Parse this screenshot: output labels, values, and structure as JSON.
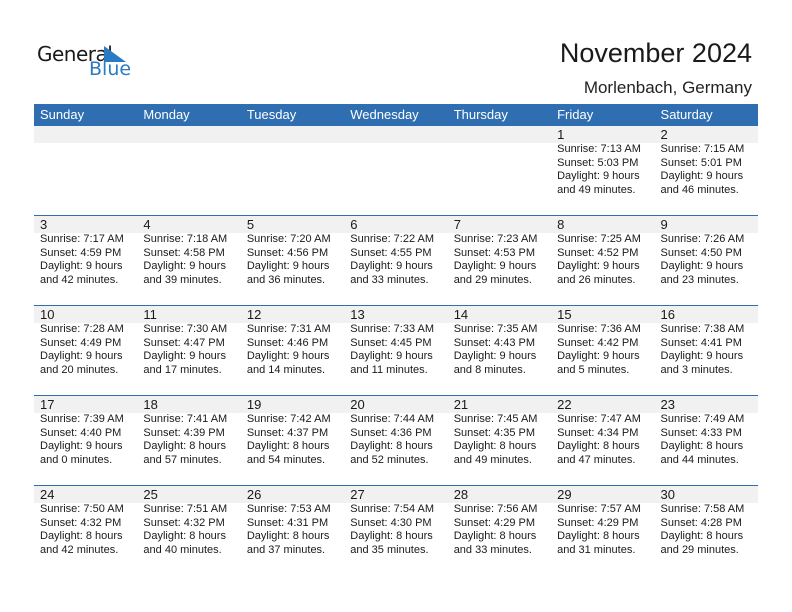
{
  "logo": {
    "line1": "General",
    "line2": "Blue"
  },
  "title": "November 2024",
  "location": "Morlenbach, Germany",
  "colors": {
    "header": "#2f6eb1",
    "logo_blue": "#2a7bc4",
    "band": "#f1f1f1"
  },
  "weekdays": [
    "Sunday",
    "Monday",
    "Tuesday",
    "Wednesday",
    "Thursday",
    "Friday",
    "Saturday"
  ],
  "weeks": [
    [
      null,
      null,
      null,
      null,
      null,
      {
        "day": "1",
        "sunrise": "Sunrise: 7:13 AM",
        "sunset": "Sunset: 5:03 PM",
        "daylight1": "Daylight: 9 hours",
        "daylight2": "and 49 minutes."
      },
      {
        "day": "2",
        "sunrise": "Sunrise: 7:15 AM",
        "sunset": "Sunset: 5:01 PM",
        "daylight1": "Daylight: 9 hours",
        "daylight2": "and 46 minutes."
      }
    ],
    [
      {
        "day": "3",
        "sunrise": "Sunrise: 7:17 AM",
        "sunset": "Sunset: 4:59 PM",
        "daylight1": "Daylight: 9 hours",
        "daylight2": "and 42 minutes."
      },
      {
        "day": "4",
        "sunrise": "Sunrise: 7:18 AM",
        "sunset": "Sunset: 4:58 PM",
        "daylight1": "Daylight: 9 hours",
        "daylight2": "and 39 minutes."
      },
      {
        "day": "5",
        "sunrise": "Sunrise: 7:20 AM",
        "sunset": "Sunset: 4:56 PM",
        "daylight1": "Daylight: 9 hours",
        "daylight2": "and 36 minutes."
      },
      {
        "day": "6",
        "sunrise": "Sunrise: 7:22 AM",
        "sunset": "Sunset: 4:55 PM",
        "daylight1": "Daylight: 9 hours",
        "daylight2": "and 33 minutes."
      },
      {
        "day": "7",
        "sunrise": "Sunrise: 7:23 AM",
        "sunset": "Sunset: 4:53 PM",
        "daylight1": "Daylight: 9 hours",
        "daylight2": "and 29 minutes."
      },
      {
        "day": "8",
        "sunrise": "Sunrise: 7:25 AM",
        "sunset": "Sunset: 4:52 PM",
        "daylight1": "Daylight: 9 hours",
        "daylight2": "and 26 minutes."
      },
      {
        "day": "9",
        "sunrise": "Sunrise: 7:26 AM",
        "sunset": "Sunset: 4:50 PM",
        "daylight1": "Daylight: 9 hours",
        "daylight2": "and 23 minutes."
      }
    ],
    [
      {
        "day": "10",
        "sunrise": "Sunrise: 7:28 AM",
        "sunset": "Sunset: 4:49 PM",
        "daylight1": "Daylight: 9 hours",
        "daylight2": "and 20 minutes."
      },
      {
        "day": "11",
        "sunrise": "Sunrise: 7:30 AM",
        "sunset": "Sunset: 4:47 PM",
        "daylight1": "Daylight: 9 hours",
        "daylight2": "and 17 minutes."
      },
      {
        "day": "12",
        "sunrise": "Sunrise: 7:31 AM",
        "sunset": "Sunset: 4:46 PM",
        "daylight1": "Daylight: 9 hours",
        "daylight2": "and 14 minutes."
      },
      {
        "day": "13",
        "sunrise": "Sunrise: 7:33 AM",
        "sunset": "Sunset: 4:45 PM",
        "daylight1": "Daylight: 9 hours",
        "daylight2": "and 11 minutes."
      },
      {
        "day": "14",
        "sunrise": "Sunrise: 7:35 AM",
        "sunset": "Sunset: 4:43 PM",
        "daylight1": "Daylight: 9 hours",
        "daylight2": "and 8 minutes."
      },
      {
        "day": "15",
        "sunrise": "Sunrise: 7:36 AM",
        "sunset": "Sunset: 4:42 PM",
        "daylight1": "Daylight: 9 hours",
        "daylight2": "and 5 minutes."
      },
      {
        "day": "16",
        "sunrise": "Sunrise: 7:38 AM",
        "sunset": "Sunset: 4:41 PM",
        "daylight1": "Daylight: 9 hours",
        "daylight2": "and 3 minutes."
      }
    ],
    [
      {
        "day": "17",
        "sunrise": "Sunrise: 7:39 AM",
        "sunset": "Sunset: 4:40 PM",
        "daylight1": "Daylight: 9 hours",
        "daylight2": "and 0 minutes."
      },
      {
        "day": "18",
        "sunrise": "Sunrise: 7:41 AM",
        "sunset": "Sunset: 4:39 PM",
        "daylight1": "Daylight: 8 hours",
        "daylight2": "and 57 minutes."
      },
      {
        "day": "19",
        "sunrise": "Sunrise: 7:42 AM",
        "sunset": "Sunset: 4:37 PM",
        "daylight1": "Daylight: 8 hours",
        "daylight2": "and 54 minutes."
      },
      {
        "day": "20",
        "sunrise": "Sunrise: 7:44 AM",
        "sunset": "Sunset: 4:36 PM",
        "daylight1": "Daylight: 8 hours",
        "daylight2": "and 52 minutes."
      },
      {
        "day": "21",
        "sunrise": "Sunrise: 7:45 AM",
        "sunset": "Sunset: 4:35 PM",
        "daylight1": "Daylight: 8 hours",
        "daylight2": "and 49 minutes."
      },
      {
        "day": "22",
        "sunrise": "Sunrise: 7:47 AM",
        "sunset": "Sunset: 4:34 PM",
        "daylight1": "Daylight: 8 hours",
        "daylight2": "and 47 minutes."
      },
      {
        "day": "23",
        "sunrise": "Sunrise: 7:49 AM",
        "sunset": "Sunset: 4:33 PM",
        "daylight1": "Daylight: 8 hours",
        "daylight2": "and 44 minutes."
      }
    ],
    [
      {
        "day": "24",
        "sunrise": "Sunrise: 7:50 AM",
        "sunset": "Sunset: 4:32 PM",
        "daylight1": "Daylight: 8 hours",
        "daylight2": "and 42 minutes."
      },
      {
        "day": "25",
        "sunrise": "Sunrise: 7:51 AM",
        "sunset": "Sunset: 4:32 PM",
        "daylight1": "Daylight: 8 hours",
        "daylight2": "and 40 minutes."
      },
      {
        "day": "26",
        "sunrise": "Sunrise: 7:53 AM",
        "sunset": "Sunset: 4:31 PM",
        "daylight1": "Daylight: 8 hours",
        "daylight2": "and 37 minutes."
      },
      {
        "day": "27",
        "sunrise": "Sunrise: 7:54 AM",
        "sunset": "Sunset: 4:30 PM",
        "daylight1": "Daylight: 8 hours",
        "daylight2": "and 35 minutes."
      },
      {
        "day": "28",
        "sunrise": "Sunrise: 7:56 AM",
        "sunset": "Sunset: 4:29 PM",
        "daylight1": "Daylight: 8 hours",
        "daylight2": "and 33 minutes."
      },
      {
        "day": "29",
        "sunrise": "Sunrise: 7:57 AM",
        "sunset": "Sunset: 4:29 PM",
        "daylight1": "Daylight: 8 hours",
        "daylight2": "and 31 minutes."
      },
      {
        "day": "30",
        "sunrise": "Sunrise: 7:58 AM",
        "sunset": "Sunset: 4:28 PM",
        "daylight1": "Daylight: 8 hours",
        "daylight2": "and 29 minutes."
      }
    ]
  ]
}
